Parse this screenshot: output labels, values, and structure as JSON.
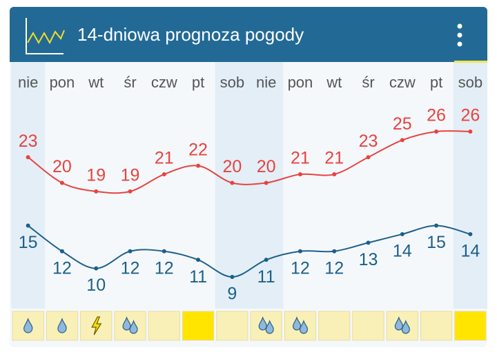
{
  "chart_data": {
    "type": "line",
    "title": "14-dniowa prognoza pogody",
    "categories": [
      "nie",
      "pon",
      "wt",
      "śr",
      "czw",
      "pt",
      "sob",
      "nie",
      "pon",
      "wt",
      "śr",
      "czw",
      "pt",
      "sob"
    ],
    "series": [
      {
        "color": "#e8423f",
        "values": [
          23,
          20,
          19,
          19,
          21,
          22,
          20,
          20,
          21,
          21,
          23,
          25,
          26,
          26
        ]
      },
      {
        "color": "#1b5f8a",
        "values": [
          15,
          12,
          10,
          12,
          12,
          11,
          9,
          11,
          12,
          12,
          13,
          14,
          15,
          14
        ]
      }
    ]
  }
}
